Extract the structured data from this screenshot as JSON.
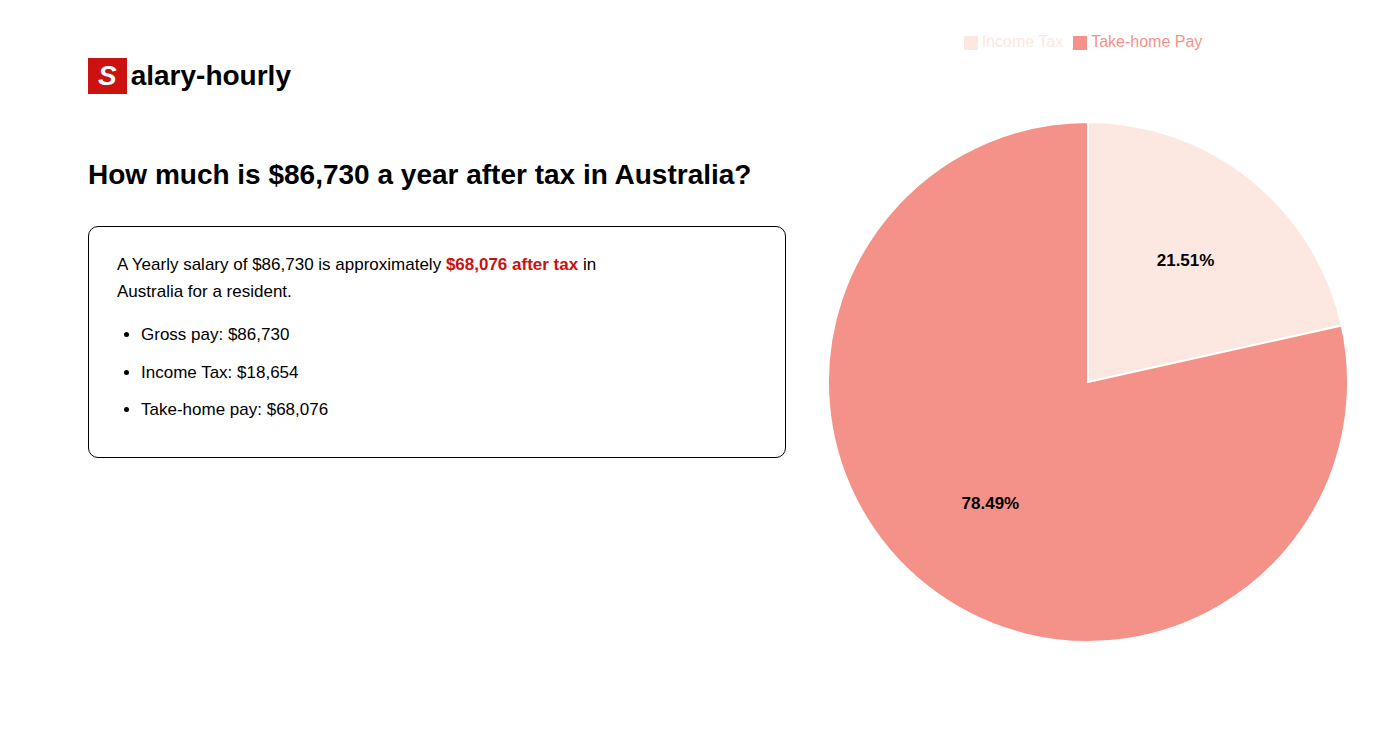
{
  "chart_data": {
    "type": "pie",
    "title": "How much is $86,730 a year after tax in Australia?",
    "categories": [
      "Income Tax",
      "Take-home Pay"
    ],
    "values": [
      21.51,
      78.49
    ],
    "value_labels": [
      "21.51%",
      "78.49%"
    ],
    "data_labels": true,
    "colors": [
      "#fce8e0",
      "#f4928a"
    ],
    "legend": "top",
    "annotations": [
      {
        "text": "S",
        "color": "#cc1111"
      },
      {
        "text": "alary-hourly"
      },
      {
        "text": "A Yearly salary of $86,730 is approximately "
      },
      {
        "text": "$68,076 after tax",
        "color": "#cc1111"
      },
      {
        "text": " in"
      },
      {
        "text": "Australia for a resident."
      },
      {
        "text": "Gross pay: $86,730"
      },
      {
        "text": "Income Tax: $18,654"
      },
      {
        "text": "Take-home pay: $68,076"
      }
    ]
  }
}
